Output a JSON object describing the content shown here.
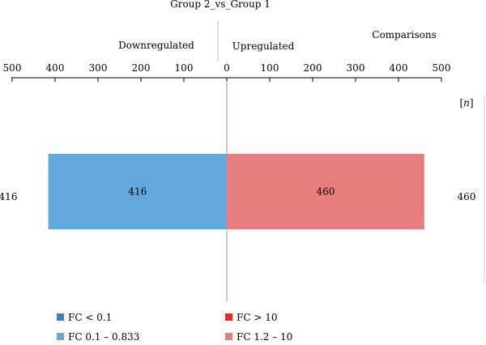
{
  "chart_data": {
    "type": "bar",
    "title": "Group 2_vs_Group 1",
    "direction_labels": {
      "left": "Downregulated",
      "right": "Upregulated"
    },
    "comparisons_label": "Comparisons",
    "unit_prefix": "[",
    "unit_symbol": "n",
    "unit_suffix": "]",
    "xlim": [
      -500,
      500
    ],
    "tick_values": [
      -500,
      -400,
      -300,
      -200,
      -100,
      0,
      100,
      200,
      300,
      400,
      500
    ],
    "tick_labels": [
      "500",
      "400",
      "300",
      "200",
      "100",
      "0",
      "100",
      "200",
      "300",
      "400",
      "500"
    ],
    "categories": [
      "Group 2_vs_Group 1"
    ],
    "series": [
      {
        "name": "FC 0.1 – 0.833",
        "side": "down",
        "values": [
          416
        ],
        "color": "#63a8dd",
        "data_label": "416"
      },
      {
        "name": "FC 1.2 – 10",
        "side": "up",
        "values": [
          460
        ],
        "color": "#e67d7f",
        "data_label": "460"
      }
    ],
    "totals": {
      "down": "416",
      "up": "460"
    },
    "legend": [
      {
        "label": "FC < 0.1",
        "color": "#3c7dc3"
      },
      {
        "label": "FC > 10",
        "color": "#e02e2c"
      },
      {
        "label": "FC 0.1 – 0.833",
        "color": "#63a8dd"
      },
      {
        "label": "FC 1.2 – 10",
        "color": "#e67d7f"
      }
    ],
    "legend_position": "bottom"
  }
}
